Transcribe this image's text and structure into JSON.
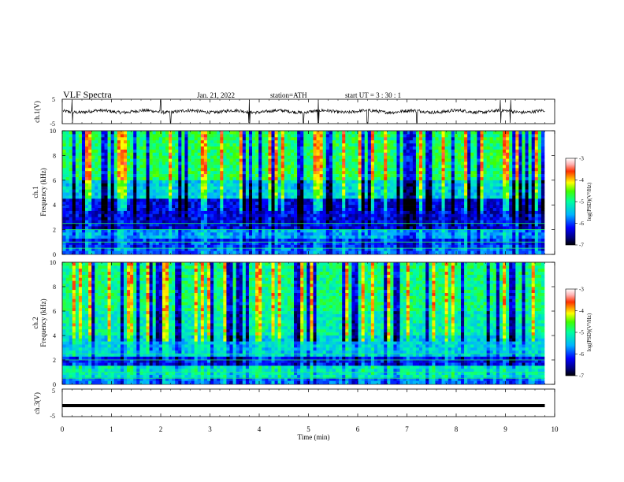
{
  "header": {
    "title": "VLF  Spectra",
    "date": "Jan. 21, 2022",
    "station": "station=ATH",
    "start": "start  UT  =    3  : 30 : 1"
  },
  "chart_data": [
    {
      "type": "line",
      "panel": "ch1-waveform",
      "ylabel": "ch.1(V)",
      "ylim": [
        -5,
        5
      ],
      "yticks": [
        "5",
        "-5"
      ],
      "baseline": 0.0,
      "spike_times_min": [
        0.2,
        2.0,
        2.2,
        3.8,
        4.9,
        5.2,
        6.2,
        7.2,
        8.9,
        9.1
      ]
    },
    {
      "type": "heatmap",
      "panel": "ch1-spectrogram",
      "ylabel": "Frequency  (kHz)",
      "channel": "ch.1",
      "ylim": [
        0,
        10
      ],
      "yticks": [
        "0",
        "2",
        "4",
        "6",
        "8",
        "10"
      ],
      "colorbar": {
        "label": "log(PSD)(V²/Hz)",
        "ticks": [
          "-3",
          "-4",
          "-5",
          "-6",
          "-7"
        ],
        "range": [
          -7,
          -3
        ]
      }
    },
    {
      "type": "heatmap",
      "panel": "ch2-spectrogram",
      "ylabel": "Frequency  (kHz)",
      "channel": "ch.2",
      "ylim": [
        0,
        10
      ],
      "yticks": [
        "0",
        "2",
        "4",
        "6",
        "8",
        "10"
      ],
      "colorbar": {
        "label": "log(PSD)(V²/Hz)",
        "ticks": [
          "-3",
          "-4",
          "-5",
          "-6",
          "-7"
        ],
        "range": [
          -7,
          -3
        ]
      }
    },
    {
      "type": "line",
      "panel": "ch3-waveform",
      "ylabel": "ch.3(V)",
      "ylim": [
        -5,
        5
      ],
      "yticks": [
        "5",
        "-5"
      ],
      "baseline": -1.0
    }
  ],
  "xaxis": {
    "label": "Time  (min)",
    "ticks": [
      "0",
      "1",
      "2",
      "3",
      "4",
      "5",
      "6",
      "7",
      "8",
      "9",
      "10"
    ],
    "xlim": [
      0,
      10
    ],
    "data_end": 9.8
  }
}
